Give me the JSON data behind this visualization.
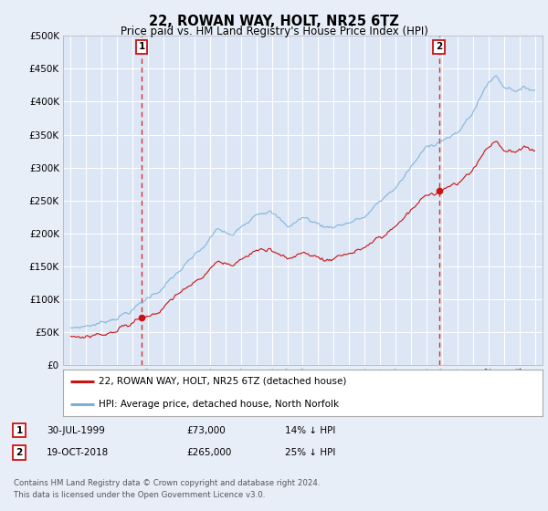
{
  "title": "22, ROWAN WAY, HOLT, NR25 6TZ",
  "subtitle": "Price paid vs. HM Land Registry's House Price Index (HPI)",
  "background_color": "#e8eef8",
  "plot_bg_color": "#dce6f5",
  "grid_color": "#c8d4e8",
  "hpi_color": "#7ab0d8",
  "price_color": "#cc1111",
  "sale1_date": 1999.58,
  "sale1_price": 73000,
  "sale2_date": 2018.8,
  "sale2_price": 265000,
  "ylim": [
    0,
    500000
  ],
  "yticks": [
    0,
    50000,
    100000,
    150000,
    200000,
    250000,
    300000,
    350000,
    400000,
    450000,
    500000
  ],
  "xlim_start": 1994.5,
  "xlim_end": 2025.5,
  "legend_label_price": "22, ROWAN WAY, HOLT, NR25 6TZ (detached house)",
  "legend_label_hpi": "HPI: Average price, detached house, North Norfolk",
  "footnote": "Contains HM Land Registry data © Crown copyright and database right 2024.\nThis data is licensed under the Open Government Licence v3.0.",
  "info1_label": "1",
  "info1_date": "30-JUL-1999",
  "info1_price": "£73,000",
  "info1_hpi": "14% ↓ HPI",
  "info2_label": "2",
  "info2_date": "19-OCT-2018",
  "info2_price": "£265,000",
  "info2_hpi": "25% ↓ HPI"
}
